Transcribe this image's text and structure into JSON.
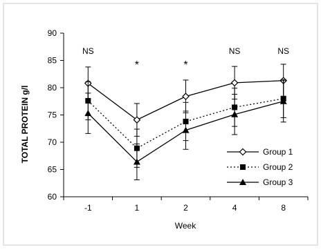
{
  "chart_data": {
    "type": "line",
    "ylabel": "TOTAL PROTEIN g/l",
    "xlabel": "Week",
    "categories": [
      "-1",
      "1",
      "2",
      "4",
      "8"
    ],
    "ylim": [
      60,
      90
    ],
    "yticks": [
      60,
      65,
      70,
      75,
      80,
      85,
      90
    ],
    "grid": false,
    "legend_position": "bottom-right",
    "annotations": [
      "NS",
      "*",
      "*",
      "NS",
      "NS"
    ],
    "series": [
      {
        "name": "Group 1",
        "values": [
          80.8,
          74.1,
          78.4,
          80.9,
          81.3
        ],
        "error": [
          3.0,
          3.0,
          3.0,
          3.0,
          3.0
        ],
        "line_style": "solid",
        "marker": "diamond-open"
      },
      {
        "name": "Group 2",
        "values": [
          77.6,
          68.9,
          73.8,
          76.4,
          78.0
        ],
        "error": [
          3.5,
          3.5,
          3.5,
          3.5,
          3.5
        ],
        "line_style": "dotted",
        "marker": "square-filled"
      },
      {
        "name": "Group 3",
        "values": [
          75.3,
          66.4,
          72.2,
          75.1,
          77.5
        ],
        "error": [
          3.7,
          3.3,
          3.5,
          3.7,
          3.8
        ],
        "line_style": "solid",
        "marker": "triangle-filled"
      }
    ]
  }
}
